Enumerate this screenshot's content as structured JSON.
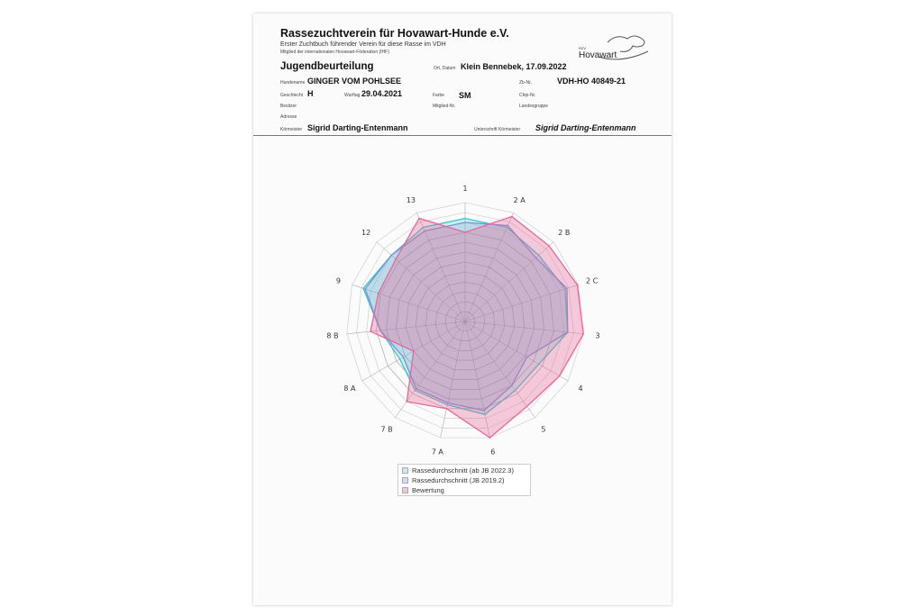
{
  "header": {
    "org": "Rassezuchtverein für Hovawart-Hunde e.V.",
    "subtitle1": "Erster Zuchtbuch führender Verein für diese Rasse im VDH",
    "subtitle2": "Mitglied der internationalen Hovawart-Föderation (IHF)",
    "logo_small": "RZV",
    "logo_text": "Hovawart",
    "doc_title": "Jugendbeurteilung"
  },
  "fields": {
    "ort_label": "Ort, Datum",
    "ort_value": "Klein Bennebek, 17.09.2022",
    "hundename_label": "Hundename",
    "hundename_value": "GINGER VOM POHLSEE",
    "zb_label": "Zb-Nr.",
    "zb_value": "VDH-HO 40849-21",
    "geschlecht_label": "Geschlecht",
    "geschlecht_value": "H",
    "wurftag_label": "Wurftag",
    "wurftag_value": "29.04.2021",
    "farbe_label": "Farbe",
    "farbe_value": "SM",
    "chip_label": "Chip-Nr.",
    "besitzer_label": "Besitzer",
    "mitglied_label": "Mitglied-Nr.",
    "landesgruppe_label": "Landesgruppe",
    "adresse_label": "Adresse",
    "koermeister_label": "Körmeister",
    "koermeister_value": "Sigrid Darting-Entenmann",
    "unterschrift_label": "Unterschrift Körmeister",
    "unterschrift_value": "Sigrid Darting-Entenmann"
  },
  "chart_data": {
    "type": "radar",
    "categories": [
      "1",
      "2 A",
      "2 B",
      "2 C",
      "3",
      "4",
      "5",
      "6",
      "7 A",
      "7 B",
      "8 A",
      "8 B",
      "9",
      "12",
      "13"
    ],
    "rlim": [
      0,
      6
    ],
    "grid": true,
    "legend_position": "bottom",
    "series": [
      {
        "name": "Rassedurchschnitt (ab JB 2022.3)",
        "color": "#3cc6c8",
        "values": [
          5.2,
          5.2,
          5.0,
          5.3,
          5.2,
          4.3,
          4.3,
          4.8,
          4.3,
          4.3,
          3.8,
          4.3,
          5.4,
          5.0,
          5.2
        ]
      },
      {
        "name": "Rassedurchschnitt (JB 2019.2)",
        "color": "#7f8fd6",
        "values": [
          5.0,
          5.3,
          4.8,
          5.4,
          5.2,
          3.6,
          4.0,
          4.6,
          4.2,
          4.2,
          3.6,
          4.3,
          5.3,
          5.0,
          5.0
        ]
      },
      {
        "name": "Bewertung",
        "color": "#e8669a",
        "values": [
          4.5,
          5.8,
          5.7,
          5.95,
          6.0,
          5.5,
          5.3,
          6.0,
          4.5,
          5.0,
          3.0,
          4.8,
          4.6,
          4.7,
          5.7
        ]
      }
    ]
  }
}
